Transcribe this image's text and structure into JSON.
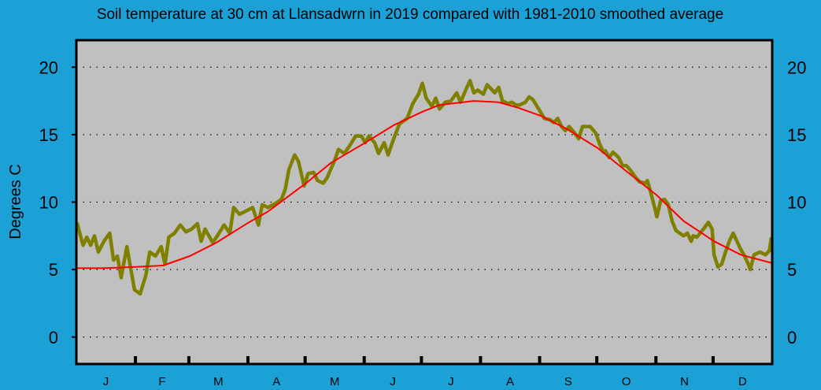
{
  "colors": {
    "background": "#1ba1d6",
    "plot_area": "#c0c0c0",
    "series_2019": "#808000",
    "average": "#ff0000"
  },
  "chart_data": {
    "type": "line",
    "title": "Soil temperature at 30 cm at Llansadwrn in 2019 compared with 1981-2010 smoothed average",
    "xlabel": "",
    "ylabel": "Degrees  C",
    "ylim": [
      -2,
      22
    ],
    "xlim": [
      "2019-01-01",
      "2019-12-31"
    ],
    "yticks": [
      0,
      5,
      10,
      15,
      20
    ],
    "month_labels": [
      "J",
      "F",
      "M",
      "A",
      "M",
      "J",
      "J",
      "A",
      "S",
      "O",
      "N",
      "D"
    ],
    "grid": "horizontal dotted",
    "series": [
      {
        "key": "2019",
        "points": [
          [
            "2019-01-01",
            8.4
          ],
          [
            "2019-01-04",
            6.8
          ],
          [
            "2019-01-06",
            7.4
          ],
          [
            "2019-01-08",
            6.8
          ],
          [
            "2019-01-10",
            7.5
          ],
          [
            "2019-01-12",
            6.3
          ],
          [
            "2019-01-15",
            7.1
          ],
          [
            "2019-01-18",
            7.7
          ],
          [
            "2019-01-20",
            5.7
          ],
          [
            "2019-01-22",
            6.0
          ],
          [
            "2019-01-24",
            4.4
          ],
          [
            "2019-01-27",
            6.7
          ],
          [
            "2019-01-29",
            5.1
          ],
          [
            "2019-01-31",
            3.5
          ],
          [
            "2019-02-03",
            3.2
          ],
          [
            "2019-02-06",
            4.6
          ],
          [
            "2019-02-08",
            6.3
          ],
          [
            "2019-02-11",
            6.0
          ],
          [
            "2019-02-14",
            6.7
          ],
          [
            "2019-02-16",
            5.4
          ],
          [
            "2019-02-18",
            7.4
          ],
          [
            "2019-02-21",
            7.7
          ],
          [
            "2019-02-24",
            8.3
          ],
          [
            "2019-02-27",
            7.8
          ],
          [
            "2019-03-02",
            8.0
          ],
          [
            "2019-03-05",
            8.4
          ],
          [
            "2019-03-07",
            7.1
          ],
          [
            "2019-03-09",
            8.0
          ],
          [
            "2019-03-13",
            7.0
          ],
          [
            "2019-03-15",
            7.4
          ],
          [
            "2019-03-19",
            8.3
          ],
          [
            "2019-03-22",
            7.7
          ],
          [
            "2019-03-24",
            9.6
          ],
          [
            "2019-03-27",
            9.1
          ],
          [
            "2019-03-30",
            9.3
          ],
          [
            "2019-04-03",
            9.6
          ],
          [
            "2019-04-06",
            8.3
          ],
          [
            "2019-04-08",
            9.8
          ],
          [
            "2019-04-11",
            9.6
          ],
          [
            "2019-04-15",
            9.9
          ],
          [
            "2019-04-18",
            10.2
          ],
          [
            "2019-04-20",
            10.9
          ],
          [
            "2019-04-22",
            12.4
          ],
          [
            "2019-04-25",
            13.5
          ],
          [
            "2019-04-27",
            13.0
          ],
          [
            "2019-04-30",
            11.2
          ],
          [
            "2019-05-02",
            12.1
          ],
          [
            "2019-05-05",
            12.2
          ],
          [
            "2019-05-07",
            11.6
          ],
          [
            "2019-05-10",
            11.4
          ],
          [
            "2019-05-12",
            11.8
          ],
          [
            "2019-05-16",
            13.1
          ],
          [
            "2019-05-18",
            13.9
          ],
          [
            "2019-05-21",
            13.6
          ],
          [
            "2019-05-24",
            14.2
          ],
          [
            "2019-05-27",
            14.9
          ],
          [
            "2019-05-30",
            14.9
          ],
          [
            "2019-06-01",
            14.4
          ],
          [
            "2019-06-03",
            14.9
          ],
          [
            "2019-06-06",
            14.4
          ],
          [
            "2019-06-08",
            13.6
          ],
          [
            "2019-06-11",
            14.4
          ],
          [
            "2019-06-13",
            13.5
          ],
          [
            "2019-06-16",
            14.7
          ],
          [
            "2019-06-19",
            15.8
          ],
          [
            "2019-06-23",
            16.2
          ],
          [
            "2019-06-26",
            17.3
          ],
          [
            "2019-06-29",
            18.0
          ],
          [
            "2019-07-01",
            18.8
          ],
          [
            "2019-07-03",
            17.7
          ],
          [
            "2019-07-06",
            17.1
          ],
          [
            "2019-07-08",
            17.7
          ],
          [
            "2019-07-10",
            16.9
          ],
          [
            "2019-07-13",
            17.4
          ],
          [
            "2019-07-16",
            17.5
          ],
          [
            "2019-07-19",
            18.1
          ],
          [
            "2019-07-21",
            17.4
          ],
          [
            "2019-07-24",
            18.4
          ],
          [
            "2019-07-26",
            19.0
          ],
          [
            "2019-07-28",
            18.1
          ],
          [
            "2019-07-30",
            18.3
          ],
          [
            "2019-08-02",
            18.0
          ],
          [
            "2019-08-04",
            18.7
          ],
          [
            "2019-08-06",
            18.4
          ],
          [
            "2019-08-08",
            18.1
          ],
          [
            "2019-08-10",
            18.5
          ],
          [
            "2019-08-12",
            17.5
          ],
          [
            "2019-08-15",
            17.3
          ],
          [
            "2019-08-17",
            17.4
          ],
          [
            "2019-08-19",
            17.2
          ],
          [
            "2019-08-21",
            17.2
          ],
          [
            "2019-08-24",
            17.4
          ],
          [
            "2019-08-26",
            17.8
          ],
          [
            "2019-08-28",
            17.6
          ],
          [
            "2019-08-31",
            16.9
          ],
          [
            "2019-09-03",
            16.2
          ],
          [
            "2019-09-06",
            16.1
          ],
          [
            "2019-09-08",
            15.9
          ],
          [
            "2019-09-10",
            16.2
          ],
          [
            "2019-09-12",
            15.6
          ],
          [
            "2019-09-14",
            15.3
          ],
          [
            "2019-09-16",
            15.6
          ],
          [
            "2019-09-19",
            15.1
          ],
          [
            "2019-09-21",
            14.7
          ],
          [
            "2019-09-23",
            15.6
          ],
          [
            "2019-09-27",
            15.6
          ],
          [
            "2019-09-30",
            15.1
          ],
          [
            "2019-10-02",
            14.3
          ],
          [
            "2019-10-04",
            13.7
          ],
          [
            "2019-10-05",
            13.8
          ],
          [
            "2019-10-07",
            13.3
          ],
          [
            "2019-10-09",
            13.7
          ],
          [
            "2019-10-12",
            13.3
          ],
          [
            "2019-10-14",
            12.7
          ],
          [
            "2019-10-16",
            12.7
          ],
          [
            "2019-10-18",
            12.4
          ],
          [
            "2019-10-21",
            11.8
          ],
          [
            "2019-10-23",
            11.5
          ],
          [
            "2019-10-26",
            11.4
          ],
          [
            "2019-10-27",
            11.6
          ],
          [
            "2019-10-29",
            10.6
          ],
          [
            "2019-10-31",
            9.5
          ],
          [
            "2019-11-01",
            8.9
          ],
          [
            "2019-11-03",
            10.1
          ],
          [
            "2019-11-05",
            10.2
          ],
          [
            "2019-11-07",
            9.8
          ],
          [
            "2019-11-09",
            8.6
          ],
          [
            "2019-11-11",
            7.9
          ],
          [
            "2019-11-13",
            7.7
          ],
          [
            "2019-11-15",
            7.5
          ],
          [
            "2019-11-17",
            7.7
          ],
          [
            "2019-11-19",
            7.1
          ],
          [
            "2019-11-20",
            7.5
          ],
          [
            "2019-11-22",
            7.4
          ],
          [
            "2019-11-26",
            8.1
          ],
          [
            "2019-11-28",
            8.5
          ],
          [
            "2019-11-30",
            8.0
          ],
          [
            "2019-12-01",
            6.1
          ],
          [
            "2019-12-03",
            5.2
          ],
          [
            "2019-12-05",
            5.4
          ],
          [
            "2019-12-07",
            6.3
          ],
          [
            "2019-12-09",
            7.1
          ],
          [
            "2019-12-11",
            7.7
          ],
          [
            "2019-12-13",
            7.1
          ],
          [
            "2019-12-15",
            6.5
          ],
          [
            "2019-12-17",
            6.0
          ],
          [
            "2019-12-19",
            5.4
          ],
          [
            "2019-12-20",
            5.0
          ],
          [
            "2019-12-22",
            6.1
          ],
          [
            "2019-12-25",
            6.3
          ],
          [
            "2019-12-28",
            6.1
          ],
          [
            "2019-12-30",
            6.4
          ],
          [
            "2019-12-31",
            7.3
          ]
        ]
      },
      {
        "key": "1981-2010 smoothed average",
        "points": [
          [
            "2019-01-01",
            5.1
          ],
          [
            "2019-01-15",
            5.1
          ],
          [
            "2019-02-01",
            5.2
          ],
          [
            "2019-02-15",
            5.3
          ],
          [
            "2019-03-01",
            6.0
          ],
          [
            "2019-03-15",
            7.0
          ],
          [
            "2019-04-01",
            8.5
          ],
          [
            "2019-04-11",
            9.3
          ],
          [
            "2019-05-01",
            11.4
          ],
          [
            "2019-05-14",
            12.9
          ],
          [
            "2019-06-01",
            14.4
          ],
          [
            "2019-06-16",
            15.7
          ],
          [
            "2019-07-01",
            16.7
          ],
          [
            "2019-07-10",
            17.2
          ],
          [
            "2019-07-28",
            17.5
          ],
          [
            "2019-08-10",
            17.4
          ],
          [
            "2019-08-20",
            17.0
          ],
          [
            "2019-09-01",
            16.4
          ],
          [
            "2019-09-15",
            15.4
          ],
          [
            "2019-10-01",
            14.0
          ],
          [
            "2019-10-15",
            12.4
          ],
          [
            "2019-11-01",
            10.5
          ],
          [
            "2019-11-15",
            8.6
          ],
          [
            "2019-12-01",
            7.1
          ],
          [
            "2019-12-15",
            6.1
          ],
          [
            "2019-12-31",
            5.5
          ]
        ]
      }
    ]
  }
}
